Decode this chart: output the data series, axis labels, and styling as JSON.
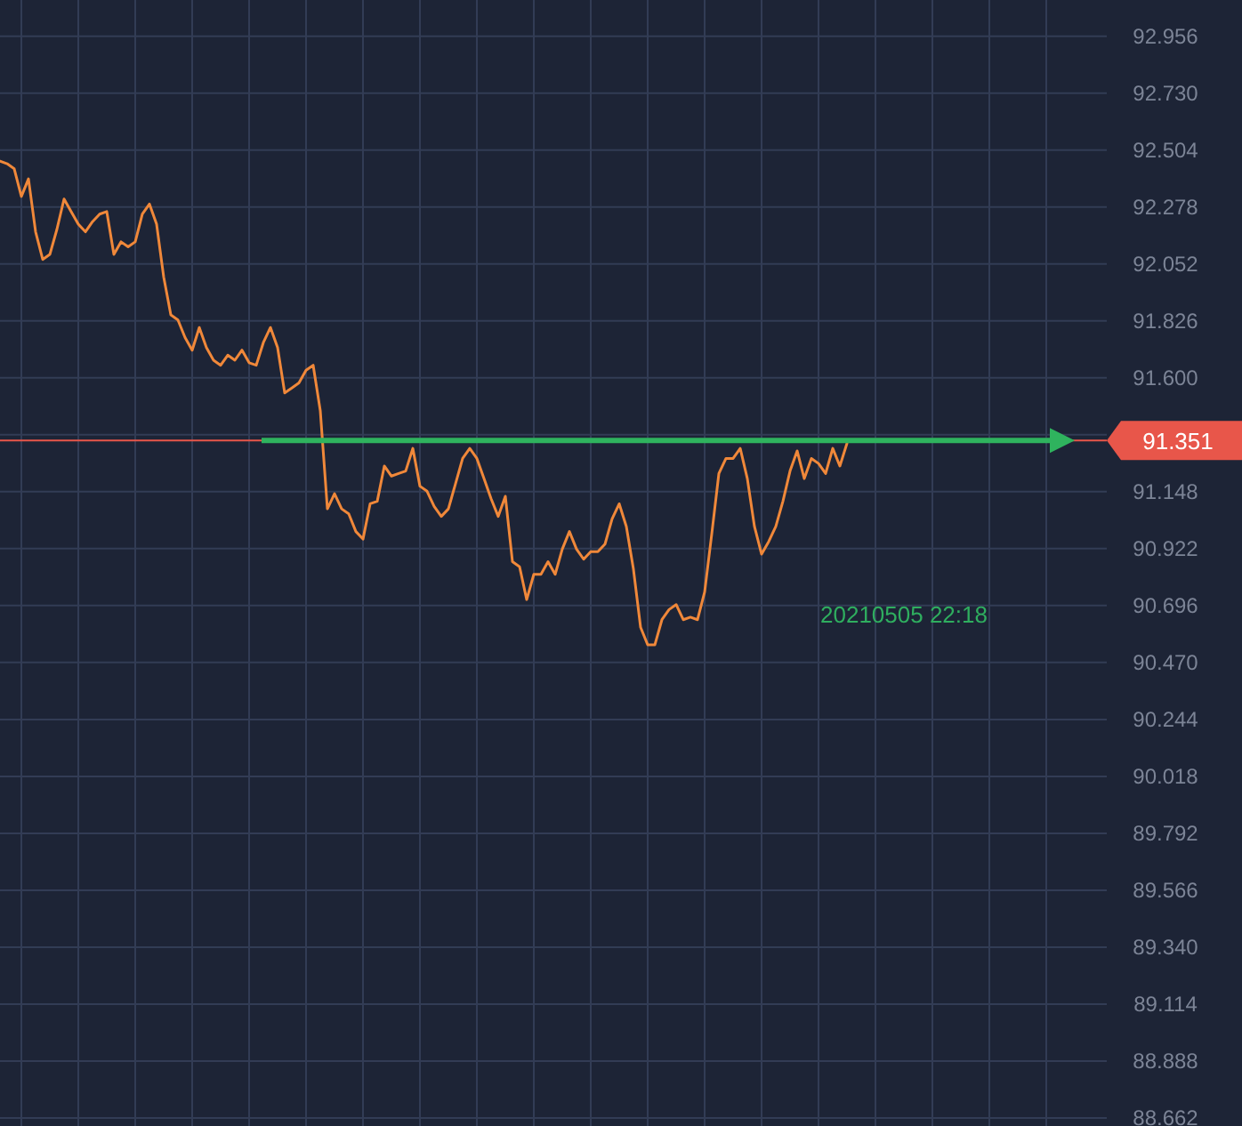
{
  "chart_data": {
    "type": "line",
    "categories": [
      null,
      null,
      null,
      null,
      null,
      null,
      null,
      null,
      null,
      null,
      null,
      null,
      null,
      null,
      null,
      null,
      null,
      null,
      null,
      null,
      null,
      null,
      null,
      null,
      null,
      null,
      null,
      null,
      null,
      null,
      null,
      null,
      null,
      null,
      null,
      null,
      null,
      null,
      null,
      null,
      null,
      null,
      null,
      null,
      null,
      null,
      null,
      null,
      null,
      null,
      null,
      null,
      null,
      null,
      null,
      null,
      null,
      null,
      null,
      null,
      null,
      null,
      null,
      null,
      null,
      null,
      null,
      null,
      null,
      null,
      null,
      null,
      null,
      null,
      null,
      null,
      null,
      null,
      null,
      null,
      null,
      null,
      null,
      null,
      null,
      null,
      null,
      null,
      null,
      null,
      null,
      null,
      null,
      null,
      null,
      null,
      null,
      null,
      null,
      null,
      null,
      null,
      null,
      null,
      null,
      null,
      null,
      null,
      null,
      null,
      null,
      null,
      null,
      null,
      null,
      null,
      null,
      null,
      null,
      null,
      null,
      null,
      null,
      null,
      null,
      null,
      null,
      null,
      null,
      null,
      null,
      null,
      null,
      null,
      null,
      null,
      null,
      null,
      null,
      null,
      null,
      null,
      null,
      null,
      null,
      null,
      null,
      null,
      null,
      null,
      null,
      null,
      null,
      null
    ],
    "series": [
      {
        "color": "#f0883a",
        "values": [
          92.46,
          92.45,
          92.43,
          92.32,
          92.39,
          92.18,
          92.07,
          92.09,
          92.19,
          92.31,
          92.26,
          92.21,
          92.18,
          92.22,
          92.25,
          92.26,
          92.09,
          92.14,
          92.12,
          92.14,
          92.25,
          92.29,
          92.21,
          92.0,
          91.85,
          91.83,
          91.76,
          91.71,
          91.8,
          91.72,
          91.67,
          91.65,
          91.69,
          91.67,
          91.71,
          91.66,
          91.65,
          91.74,
          91.8,
          91.72,
          91.54,
          91.56,
          91.58,
          91.63,
          91.65,
          91.47,
          91.08,
          91.14,
          91.08,
          91.06,
          90.99,
          90.96,
          91.1,
          91.11,
          91.25,
          91.21,
          91.22,
          91.23,
          91.32,
          91.17,
          91.15,
          91.09,
          91.05,
          91.08,
          91.18,
          91.28,
          91.32,
          91.28,
          91.2,
          91.12,
          91.05,
          91.13,
          90.87,
          90.85,
          90.72,
          90.82,
          90.82,
          90.87,
          90.82,
          90.92,
          90.99,
          90.92,
          90.88,
          90.91,
          90.91,
          90.94,
          91.04,
          91.1,
          91.01,
          90.84,
          90.61,
          90.54,
          90.54,
          90.64,
          90.68,
          90.7,
          90.64,
          90.65,
          90.64,
          90.75,
          90.98,
          91.22,
          91.28,
          91.28,
          91.32,
          91.2,
          91.01,
          90.9,
          90.95,
          91.01,
          91.11,
          91.23,
          91.31,
          91.2,
          91.28,
          91.26,
          91.22,
          91.32,
          91.25,
          91.34,
          null,
          null,
          null,
          null,
          null,
          null,
          null,
          null,
          null,
          null,
          null,
          null,
          null,
          null,
          null,
          null,
          null,
          null,
          null,
          null,
          null,
          null,
          null,
          null,
          null,
          null,
          null,
          null,
          null,
          null,
          null,
          null,
          null,
          null
        ]
      }
    ],
    "ylim": [
      88.63,
      93.1
    ],
    "yticks": [
      88.662,
      88.888,
      89.114,
      {
        "value": 89.34,
        "label": "89.340"
      },
      89.566,
      89.792,
      90.018,
      90.244,
      {
        "value": 90.47,
        "label": "90.470"
      },
      90.696,
      90.922,
      91.148,
      {
        "value": 91.374,
        "label": null
      },
      {
        "value": 91.6,
        "label": "91.600"
      },
      91.826,
      92.052,
      92.278,
      92.504,
      {
        "value": 92.73,
        "label": "92.730"
      },
      92.956
    ],
    "ref_lines": [
      {
        "axis": "y",
        "value": 91.351,
        "label": "91.351",
        "color": "#e8564a"
      }
    ],
    "annotations": [
      "20210505 22:18"
    ],
    "grid": true,
    "tick_labels": "y"
  }
}
